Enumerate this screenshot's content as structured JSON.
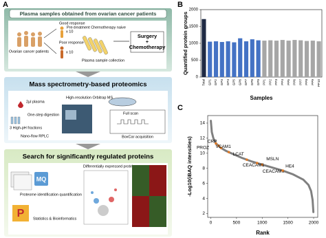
{
  "panel_a": {
    "panel_label": "A",
    "section_1": {
      "title": "Plasma samples obtained from ovarian cancer patients",
      "good": "Good response",
      "good_n": "x 10",
      "poor": "Poor response",
      "poor_n": "x 10",
      "patients": "Ovarian cancer patients",
      "pretreatment": "Pre-treatment Chemotherapy naive",
      "collection": "Plasma sample collection",
      "surgery": "Surgery",
      "plus": "+",
      "chemo": "Chemotherapy"
    },
    "section_2": {
      "title": "Mass spectrometry-based proteomics",
      "plasma": "2µl plasma",
      "ms": "High-resolution Orbitrap MS",
      "digestion": "One-step digestion",
      "fractions": "3 High-pH fractions",
      "rplc": "Nano-flow RPLC",
      "full_scan": "Full scan",
      "boxcar": "BoxCar acquisition"
    },
    "section_3": {
      "title": "Search for significantly regulated proteins",
      "dep": "Differentially expressed proteins",
      "mq": "MQ",
      "proteome": "Proteome identification quantification",
      "stats": "Statistics & Bioinformatics"
    }
  },
  "chart_data": [
    {
      "type": "bar",
      "panel_label": "B",
      "xlabel": "Samples",
      "ylabel": "Quantified protein groups",
      "categories": [
        "Total",
        "GP1",
        "GP2",
        "GP3",
        "GP4",
        "GP5",
        "GP6",
        "GP7",
        "GP8",
        "GP9",
        "PP1",
        "PP2",
        "PP3",
        "PP4",
        "PP5",
        "PP6",
        "PP7",
        "PP8",
        "PP9",
        "PP10"
      ],
      "values": [
        1720,
        1050,
        1060,
        1040,
        1060,
        1030,
        1150,
        1060,
        1120,
        1090,
        1080,
        1090,
        1080,
        1100,
        1080,
        1100,
        1090,
        1070,
        1080,
        1060
      ],
      "colors": [
        "#1f2a44",
        "#4472c4",
        "#4472c4",
        "#4472c4",
        "#4472c4",
        "#4472c4",
        "#4472c4",
        "#4472c4",
        "#4472c4",
        "#4472c4",
        "#a6a6a6",
        "#a6a6a6",
        "#a6a6a6",
        "#a6a6a6",
        "#a6a6a6",
        "#a6a6a6",
        "#a6a6a6",
        "#a6a6a6",
        "#a6a6a6",
        "#a6a6a6"
      ],
      "ylim": [
        0,
        2000
      ],
      "yticks": [
        0,
        500,
        1000,
        1500,
        2000
      ]
    },
    {
      "type": "line",
      "panel_label": "C",
      "xlabel": "Rank",
      "ylabel": "-Log10(iBAQ intensities)",
      "color": "#808080",
      "highlight_color": "#e07b28",
      "x": [
        1,
        20,
        50,
        100,
        200,
        300,
        400,
        600,
        800,
        1000,
        1200,
        1400,
        1600,
        1800,
        1900,
        1950,
        1980,
        1995
      ],
      "values": [
        14.3,
        12.8,
        12.0,
        11.3,
        10.7,
        10.3,
        10.0,
        9.4,
        8.9,
        8.5,
        8.1,
        7.7,
        7.2,
        6.5,
        5.8,
        5.0,
        3.8,
        2.2
      ],
      "annotations": [
        {
          "label": "CRP",
          "x": 150,
          "y": 11.0
        },
        {
          "label": "VCAM1",
          "x": 200,
          "y": 10.7
        },
        {
          "label": "LCAT",
          "x": 350,
          "y": 10.15
        },
        {
          "label": "PROZ",
          "x": 100,
          "y": 11.3
        },
        {
          "label": "MSLN",
          "x": 1000,
          "y": 8.5
        },
        {
          "label": "CEACAM1",
          "x": 700,
          "y": 9.15
        },
        {
          "label": "CEACAM6",
          "x": 900,
          "y": 8.7
        },
        {
          "label": "HE4",
          "x": 1400,
          "y": 7.7
        }
      ],
      "xlim": [
        -60,
        2080
      ],
      "xticks": [
        0,
        500,
        1000,
        1500,
        2000
      ],
      "ylim": [
        1.5,
        15
      ],
      "yticks": [
        2,
        4,
        6,
        8,
        10,
        12,
        14
      ]
    }
  ]
}
